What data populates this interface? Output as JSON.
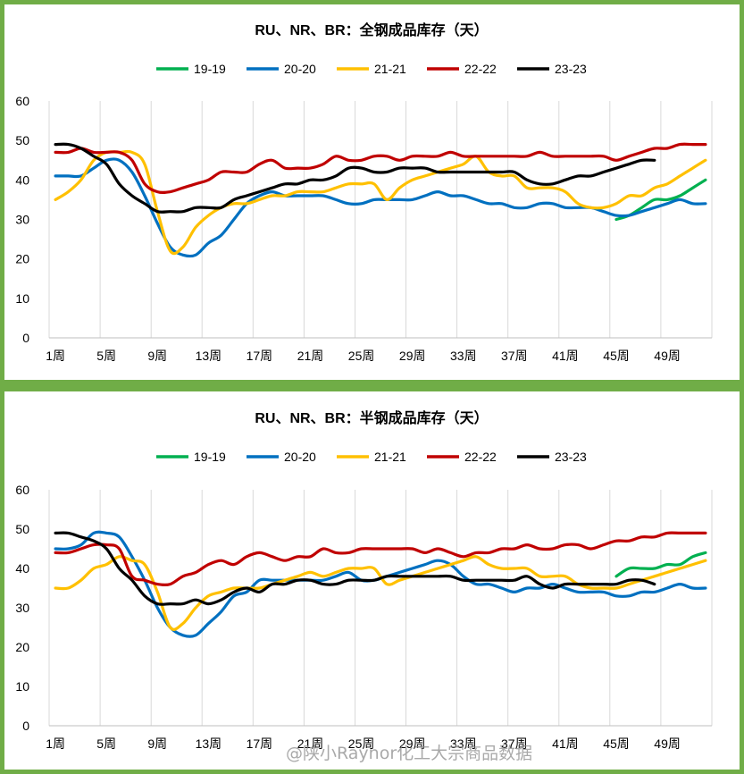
{
  "chart_data": [
    {
      "type": "line",
      "title": "RU、NR、BR：全钢成品库存（天）",
      "ylim": [
        0,
        60
      ],
      "yticks": [
        0,
        10,
        20,
        30,
        40,
        50,
        60
      ],
      "x": [
        1,
        2,
        3,
        4,
        5,
        6,
        7,
        8,
        9,
        10,
        11,
        12,
        13,
        14,
        15,
        16,
        17,
        18,
        19,
        20,
        21,
        22,
        23,
        24,
        25,
        26,
        27,
        28,
        29,
        30,
        31,
        32,
        33,
        34,
        35,
        36,
        37,
        38,
        39,
        40,
        41,
        42,
        43,
        44,
        45,
        46,
        47,
        48,
        49,
        50,
        51,
        52
      ],
      "xtick_labels": [
        "1周",
        "5周",
        "9周",
        "13周",
        "17周",
        "21周",
        "25周",
        "29周",
        "33周",
        "37周",
        "41周",
        "45周",
        "49周"
      ],
      "xtick_positions": [
        1,
        5,
        9,
        13,
        17,
        21,
        25,
        29,
        33,
        37,
        41,
        45,
        49
      ],
      "grid": "vertical",
      "legend": "top",
      "series": [
        {
          "name": "19-19",
          "color": "#00B050",
          "values": [
            null,
            null,
            null,
            null,
            null,
            null,
            null,
            null,
            null,
            null,
            null,
            null,
            null,
            null,
            null,
            null,
            null,
            null,
            null,
            null,
            null,
            null,
            null,
            null,
            null,
            null,
            null,
            null,
            null,
            null,
            null,
            null,
            null,
            null,
            null,
            null,
            null,
            null,
            null,
            null,
            null,
            null,
            null,
            null,
            30,
            31,
            33,
            35,
            35,
            36,
            38,
            40
          ]
        },
        {
          "name": "20-20",
          "color": "#0070C0",
          "values": [
            41,
            41,
            41,
            43,
            45,
            45,
            42,
            36,
            29,
            23,
            21,
            21,
            24,
            26,
            30,
            34,
            36,
            37,
            36,
            36,
            36,
            36,
            35,
            34,
            34,
            35,
            35,
            35,
            35,
            36,
            37,
            36,
            36,
            35,
            34,
            34,
            33,
            33,
            34,
            34,
            33,
            33,
            33,
            32,
            31,
            31,
            32,
            33,
            34,
            35,
            34,
            34
          ]
        },
        {
          "name": "21-21",
          "color": "#FFC000",
          "values": [
            35,
            37,
            40,
            45,
            47,
            47,
            47,
            44,
            32,
            22,
            23,
            28,
            31,
            33,
            34,
            34,
            35,
            36,
            36,
            37,
            37,
            37,
            38,
            39,
            39,
            39,
            35,
            38,
            40,
            41,
            42,
            43,
            44,
            46,
            42,
            41,
            41,
            38,
            38,
            38,
            37,
            34,
            33,
            33,
            34,
            36,
            36,
            38,
            39,
            41,
            43,
            45
          ]
        },
        {
          "name": "22-22",
          "color": "#C00000",
          "values": [
            47,
            47,
            48,
            47,
            47,
            47,
            45,
            39,
            37,
            37,
            38,
            39,
            40,
            42,
            42,
            42,
            44,
            45,
            43,
            43,
            43,
            44,
            46,
            45,
            45,
            46,
            46,
            45,
            46,
            46,
            46,
            47,
            46,
            46,
            46,
            46,
            46,
            46,
            47,
            46,
            46,
            46,
            46,
            46,
            45,
            46,
            47,
            48,
            48,
            49,
            49,
            49
          ]
        },
        {
          "name": "23-23",
          "color": "#000000",
          "values": [
            49,
            49,
            48,
            46,
            44,
            39,
            36,
            34,
            32,
            32,
            32,
            33,
            33,
            33,
            35,
            36,
            37,
            38,
            39,
            39,
            40,
            40,
            41,
            43,
            43,
            42,
            42,
            43,
            43,
            43,
            42,
            42,
            42,
            42,
            42,
            42,
            42,
            40,
            39,
            39,
            40,
            41,
            41,
            42,
            43,
            44,
            45,
            45,
            null,
            null,
            null,
            null
          ]
        }
      ]
    },
    {
      "type": "line",
      "title": "RU、NR、BR：半钢成品库存（天）",
      "ylim": [
        0,
        60
      ],
      "yticks": [
        0,
        10,
        20,
        30,
        40,
        50,
        60
      ],
      "x": [
        1,
        2,
        3,
        4,
        5,
        6,
        7,
        8,
        9,
        10,
        11,
        12,
        13,
        14,
        15,
        16,
        17,
        18,
        19,
        20,
        21,
        22,
        23,
        24,
        25,
        26,
        27,
        28,
        29,
        30,
        31,
        32,
        33,
        34,
        35,
        36,
        37,
        38,
        39,
        40,
        41,
        42,
        43,
        44,
        45,
        46,
        47,
        48,
        49,
        50,
        51,
        52
      ],
      "xtick_labels": [
        "1周",
        "5周",
        "9周",
        "13周",
        "17周",
        "21周",
        "25周",
        "29周",
        "33周",
        "37周",
        "41周",
        "45周",
        "49周"
      ],
      "xtick_positions": [
        1,
        5,
        9,
        13,
        17,
        21,
        25,
        29,
        33,
        37,
        41,
        45,
        49
      ],
      "grid": "vertical",
      "legend": "top",
      "series": [
        {
          "name": "19-19",
          "color": "#00B050",
          "values": [
            null,
            null,
            null,
            null,
            null,
            null,
            null,
            null,
            null,
            null,
            null,
            null,
            null,
            null,
            null,
            null,
            null,
            null,
            null,
            null,
            null,
            null,
            null,
            null,
            null,
            null,
            null,
            null,
            null,
            null,
            null,
            null,
            null,
            null,
            null,
            null,
            null,
            null,
            null,
            null,
            null,
            null,
            null,
            null,
            38,
            40,
            40,
            40,
            41,
            41,
            43,
            44
          ]
        },
        {
          "name": "20-20",
          "color": "#0070C0",
          "values": [
            45,
            45,
            46,
            49,
            49,
            48,
            43,
            37,
            30,
            25,
            23,
            23,
            26,
            29,
            33,
            34,
            37,
            37,
            37,
            37,
            37,
            37,
            38,
            39,
            37,
            37,
            38,
            39,
            40,
            41,
            42,
            41,
            38,
            36,
            36,
            35,
            34,
            35,
            35,
            36,
            35,
            34,
            34,
            34,
            33,
            33,
            34,
            34,
            35,
            36,
            35,
            35
          ]
        },
        {
          "name": "21-21",
          "color": "#FFC000",
          "values": [
            35,
            35,
            37,
            40,
            41,
            43,
            42,
            41,
            34,
            25,
            26,
            30,
            33,
            34,
            35,
            35,
            35,
            36,
            37,
            38,
            39,
            38,
            39,
            40,
            40,
            40,
            36,
            37,
            38,
            39,
            40,
            41,
            42,
            43,
            41,
            40,
            40,
            40,
            38,
            38,
            38,
            36,
            35,
            35,
            35,
            36,
            37,
            38,
            39,
            40,
            41,
            42
          ]
        },
        {
          "name": "22-22",
          "color": "#C00000",
          "values": [
            44,
            44,
            45,
            46,
            46,
            45,
            38,
            37,
            36,
            36,
            38,
            39,
            41,
            42,
            41,
            43,
            44,
            43,
            42,
            43,
            43,
            45,
            44,
            44,
            45,
            45,
            45,
            45,
            45,
            44,
            45,
            44,
            43,
            44,
            44,
            45,
            45,
            46,
            45,
            45,
            46,
            46,
            45,
            46,
            47,
            47,
            48,
            48,
            49,
            49,
            49,
            49
          ]
        },
        {
          "name": "23-23",
          "color": "#000000",
          "values": [
            49,
            49,
            48,
            47,
            45,
            40,
            37,
            33,
            31,
            31,
            31,
            32,
            31,
            32,
            34,
            35,
            34,
            36,
            36,
            37,
            37,
            36,
            36,
            37,
            37,
            37,
            38,
            38,
            38,
            38,
            38,
            38,
            37,
            37,
            37,
            37,
            37,
            38,
            36,
            35,
            36,
            36,
            36,
            36,
            36,
            37,
            37,
            36,
            null,
            null,
            null,
            null
          ]
        }
      ]
    }
  ],
  "watermark": "@陕小Raynor化工大宗商品数据"
}
